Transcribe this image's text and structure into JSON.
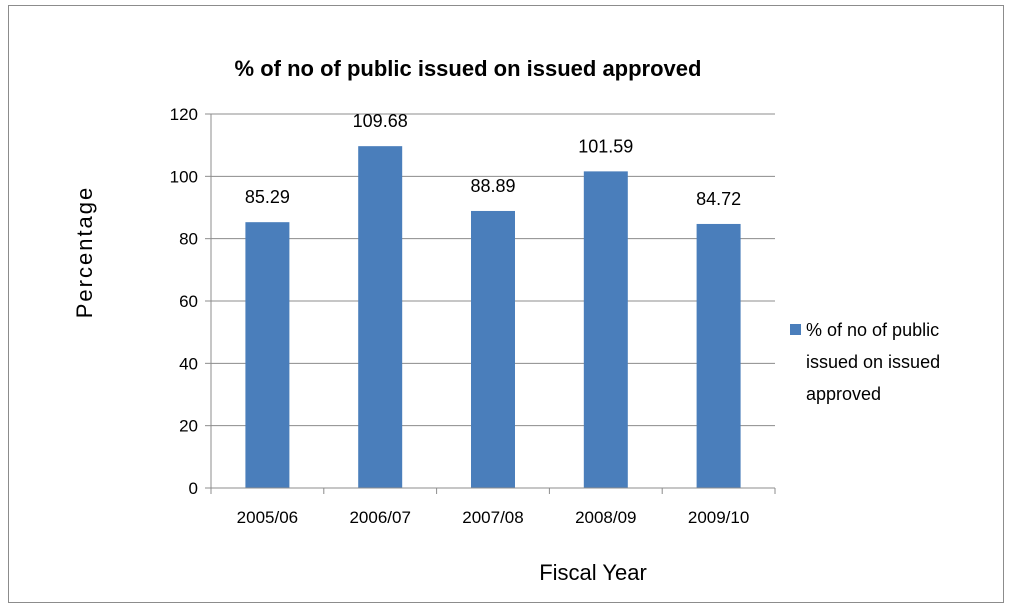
{
  "chart_data": {
    "type": "bar",
    "title": "% of  no of public issued on issued approved",
    "xlabel": "Fiscal Year",
    "ylabel": "Percentage",
    "categories": [
      "2005/06",
      "2006/07",
      "2007/08",
      "2008/09",
      "2009/10"
    ],
    "series": [
      {
        "name": "% of  no of public issued on issued approved",
        "legend_lines": [
          "% of  no of public",
          "issued on issued",
          "approved"
        ],
        "values": [
          85.29,
          109.68,
          88.89,
          101.59,
          84.72
        ],
        "labels": [
          "85.29",
          "109.68",
          "88.89",
          "101.59",
          "84.72"
        ],
        "color": "#4a7ebb"
      }
    ],
    "ylim": [
      0,
      120
    ],
    "yticks": [
      0,
      20,
      40,
      60,
      80,
      100,
      120
    ],
    "grid": true,
    "legend_position": "right"
  }
}
